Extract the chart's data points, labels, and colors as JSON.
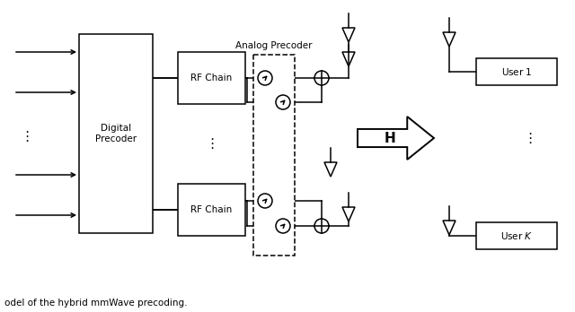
{
  "figsize": [
    6.4,
    3.48
  ],
  "dpi": 100,
  "bg_color": "#ffffff",
  "caption": "odel of the hybrid mmWave precoding.",
  "title_analog": "Analog Precoder",
  "label_digital": "Digital\nPrecoder",
  "label_rf": "RF Chain",
  "label_user1": "User $\\mathit{1}$",
  "label_userK": "User $\\mathit{K}$",
  "label_H": "$\\mathbf{H}$"
}
